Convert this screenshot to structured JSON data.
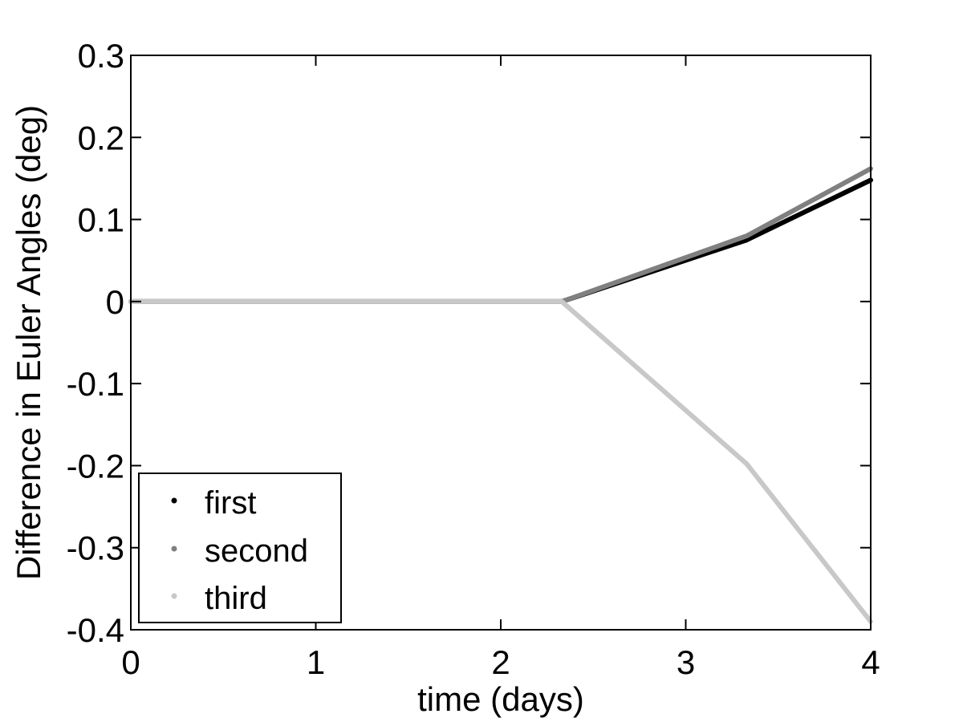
{
  "chart_data": {
    "type": "line",
    "title": "",
    "xlabel": "time (days)",
    "ylabel": "Difference in Euler Angles (deg)",
    "xlim": [
      0,
      4
    ],
    "ylim": [
      -0.4,
      0.3
    ],
    "xticks": [
      "0",
      "1",
      "2",
      "3",
      "4"
    ],
    "yticks": [
      "-0.4",
      "-0.3",
      "-0.2",
      "-0.1",
      "0",
      "0.1",
      "0.2",
      "0.3"
    ],
    "grid": false,
    "legend_position": "bottom-left",
    "series": [
      {
        "name": "first",
        "color": "#000000",
        "x": [
          0,
          2.33,
          3.33,
          4.0
        ],
        "y": [
          0,
          0,
          0.075,
          0.148
        ]
      },
      {
        "name": "second",
        "color": "#808080",
        "x": [
          0,
          2.33,
          3.33,
          4.0
        ],
        "y": [
          0,
          0,
          0.08,
          0.162
        ]
      },
      {
        "name": "third",
        "color": "#c8c8c8",
        "x": [
          0,
          2.33,
          3.33,
          4.0
        ],
        "y": [
          0,
          0,
          -0.198,
          -0.39
        ]
      }
    ]
  }
}
